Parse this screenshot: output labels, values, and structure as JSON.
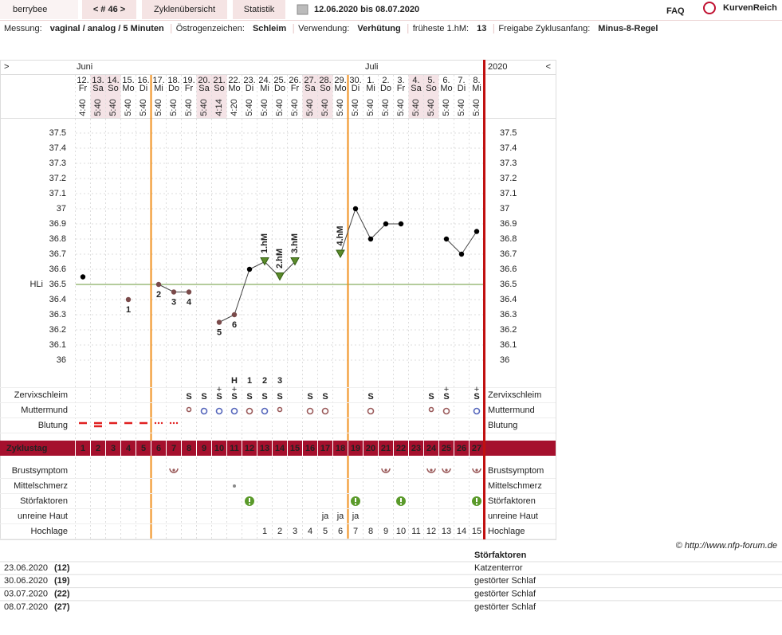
{
  "header": {
    "user": "berrybee",
    "cycle_nav": "< # 46 >",
    "tabs": [
      "Zyklenübersicht",
      "Statistik"
    ],
    "period": "12.06.2020 bis 08.07.2020",
    "faq": "FAQ",
    "brand": "KurvenReich"
  },
  "settings": [
    {
      "label": "Messung:",
      "value": "vaginal / analog / 5 Minuten"
    },
    {
      "label": "Östrogenzeichen:",
      "value": "Schleim"
    },
    {
      "label": "Verwendung:",
      "value": "Verhütung"
    },
    {
      "label": "früheste 1.hM:",
      "value": "13"
    },
    {
      "label": "Freigabe Zyklusanfang:",
      "value": "Minus-8-Regel"
    }
  ],
  "chart_data": {
    "type": "line",
    "nav_prev": ">",
    "nav_next": "<",
    "months": [
      "Juni",
      "Juli"
    ],
    "year": "2020",
    "dates": [
      "12.",
      "13.",
      "14.",
      "15.",
      "16.",
      "17.",
      "18.",
      "19.",
      "20.",
      "21.",
      "22.",
      "23.",
      "24.",
      "25.",
      "26.",
      "27.",
      "28.",
      "29.",
      "30.",
      "1.",
      "2.",
      "3.",
      "4.",
      "5.",
      "6.",
      "7.",
      "8."
    ],
    "weekdays": [
      "Fr",
      "Sa",
      "So",
      "Mo",
      "Di",
      "Mi",
      "Do",
      "Fr",
      "Sa",
      "So",
      "Mo",
      "Di",
      "Mi",
      "Do",
      "Fr",
      "Sa",
      "So",
      "Mo",
      "Di",
      "Mi",
      "Do",
      "Fr",
      "Sa",
      "So",
      "Mo",
      "Di",
      "Mi"
    ],
    "times": [
      "4:40",
      "5:40",
      "5:40",
      "5:40",
      "5:40",
      "5:40",
      "5:40",
      "5:40",
      "5:40",
      "4:14",
      "4:20",
      "5:40",
      "5:40",
      "5:40",
      "5:40",
      "5:40",
      "5:40",
      "5:40",
      "5:40",
      "5:40",
      "5:40",
      "5:40",
      "5:40",
      "5:40",
      "5:40",
      "5:40",
      "5:40"
    ],
    "ylim": [
      35.85,
      37.6
    ],
    "yticks": [
      36,
      36.1,
      36.2,
      36.3,
      36.4,
      36.5,
      36.6,
      36.7,
      36.8,
      36.9,
      37,
      37.1,
      37.2,
      37.3,
      37.4,
      37.5
    ],
    "values": [
      36.55,
      null,
      null,
      36.4,
      null,
      36.5,
      36.45,
      36.45,
      null,
      36.25,
      36.3,
      36.6,
      36.65,
      36.55,
      36.65,
      null,
      null,
      36.7,
      37,
      36.8,
      36.9,
      36.9,
      null,
      null,
      36.8,
      36.7,
      36.85
    ],
    "point_labels": [
      null,
      null,
      null,
      "1",
      null,
      "2",
      "3",
      "4",
      null,
      "5",
      "6",
      null,
      null,
      null,
      null,
      null,
      null,
      null,
      null,
      null,
      null,
      null,
      null,
      null,
      null,
      null,
      null
    ],
    "hm_labels": [
      null,
      null,
      null,
      null,
      null,
      null,
      null,
      null,
      null,
      null,
      null,
      null,
      "1.hM",
      "2.hM",
      "3.hM",
      null,
      null,
      "4.hM",
      null,
      null,
      null,
      null,
      null,
      null,
      null,
      null,
      null
    ],
    "reference": {
      "label": "HLi",
      "value": 36.5
    },
    "color": "#000000"
  },
  "rows": {
    "labels": [
      "Zervixschleim",
      "Muttermund",
      "Blutung",
      "Zyklustag",
      "Brustsymptom",
      "Mittelschmerz",
      "Störfaktoren",
      "unreine Haut",
      "Hochlage"
    ],
    "peak": [
      null,
      null,
      null,
      null,
      null,
      null,
      null,
      null,
      null,
      null,
      "H",
      "1",
      "2",
      "3",
      null,
      null,
      null,
      null,
      null,
      null,
      null,
      null,
      null,
      null,
      null,
      null,
      null
    ],
    "zervix": [
      null,
      null,
      null,
      null,
      null,
      null,
      null,
      "S",
      "S",
      "S",
      "S",
      "S",
      "S",
      "S",
      null,
      "S",
      "S",
      null,
      null,
      "S",
      null,
      null,
      null,
      "S",
      "S",
      null,
      "S"
    ],
    "zervix_sup": [
      null,
      null,
      null,
      null,
      null,
      null,
      null,
      null,
      null,
      "+",
      "+",
      null,
      null,
      null,
      null,
      null,
      null,
      null,
      null,
      null,
      null,
      null,
      null,
      null,
      "+",
      null,
      "+"
    ],
    "cycle_days": [
      1,
      2,
      3,
      4,
      5,
      6,
      7,
      8,
      9,
      10,
      11,
      12,
      13,
      14,
      15,
      16,
      17,
      18,
      19,
      20,
      21,
      22,
      23,
      24,
      25,
      26,
      27
    ],
    "skin": [
      null,
      null,
      null,
      null,
      null,
      null,
      null,
      null,
      null,
      null,
      null,
      null,
      null,
      null,
      null,
      null,
      "ja",
      "ja",
      "ja",
      null,
      null,
      null,
      null,
      null,
      null,
      null,
      null
    ],
    "hochlage": [
      null,
      null,
      null,
      null,
      null,
      null,
      null,
      null,
      null,
      null,
      null,
      null,
      1,
      2,
      3,
      4,
      5,
      6,
      7,
      8,
      9,
      10,
      11,
      12,
      13,
      14,
      15
    ]
  },
  "footer": {
    "copyright": "© http://www.nfp-forum.de",
    "table": {
      "header": "Störfaktoren",
      "rows": [
        [
          "23.06.2020",
          "(12)",
          "Katzenterror"
        ],
        [
          "30.06.2020",
          "(19)",
          "gestörter Schlaf"
        ],
        [
          "03.07.2020",
          "(22)",
          "gestörter Schlaf"
        ],
        [
          "08.07.2020",
          "(27)",
          "gestörter Schlaf"
        ]
      ]
    }
  }
}
